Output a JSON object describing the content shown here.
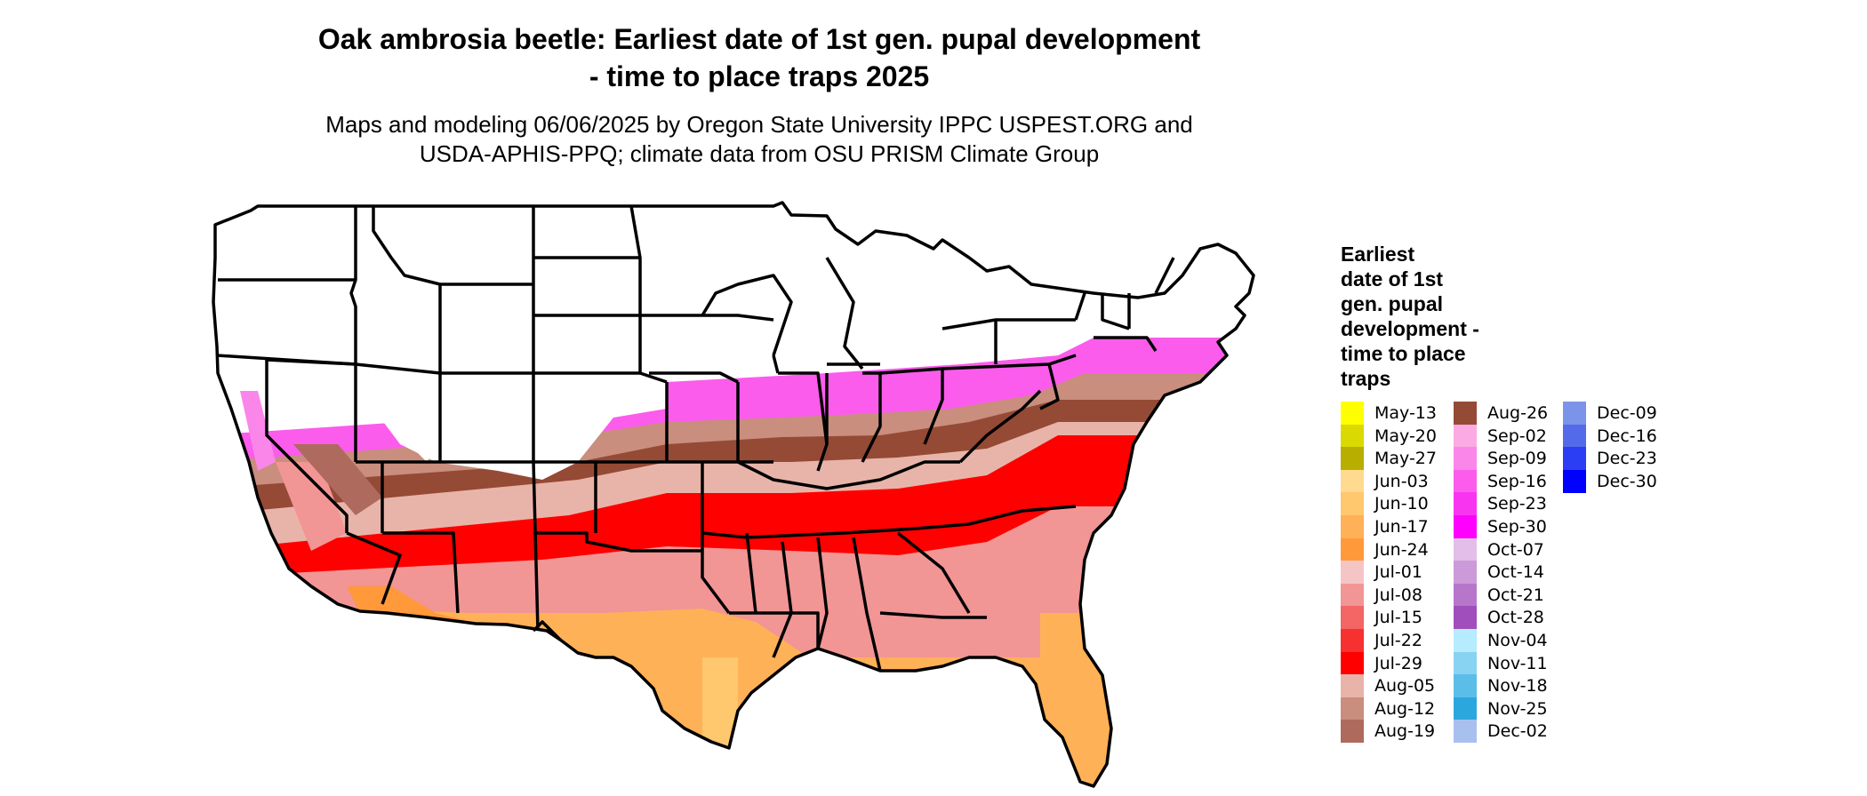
{
  "header": {
    "title_line1": "Oak ambrosia beetle: Earliest date of 1st gen. pupal development",
    "title_line2": "- time to place traps 2025",
    "subtitle_line1": "Maps and modeling 06/06/2025 by Oregon State University IPPC USPEST.ORG and",
    "subtitle_line2": "USDA-APHIS-PPQ; climate data from OSU PRISM Climate Group"
  },
  "legend": {
    "title_lines": [
      "Earliest",
      "date of 1st",
      "gen. pupal",
      "development -",
      "time to place",
      "traps"
    ],
    "columns": [
      [
        {
          "label": "May-13",
          "color": "#FFFF00"
        },
        {
          "label": "May-20",
          "color": "#DADA00"
        },
        {
          "label": "May-27",
          "color": "#B8AE00"
        },
        {
          "label": "Jun-03",
          "color": "#FFDA8F"
        },
        {
          "label": "Jun-10",
          "color": "#FFC76E"
        },
        {
          "label": "Jun-17",
          "color": "#FFB157"
        },
        {
          "label": "Jun-24",
          "color": "#FF993A"
        },
        {
          "label": "Jul-01",
          "color": "#F5C5C5"
        },
        {
          "label": "Jul-08",
          "color": "#F29595"
        },
        {
          "label": "Jul-15",
          "color": "#F46565"
        },
        {
          "label": "Jul-22",
          "color": "#F73030"
        },
        {
          "label": "Jul-29",
          "color": "#FF0000"
        },
        {
          "label": "Aug-05",
          "color": "#E8B4AA"
        },
        {
          "label": "Aug-12",
          "color": "#C98E7E"
        },
        {
          "label": "Aug-19",
          "color": "#AE6A5C"
        }
      ],
      [
        {
          "label": "Aug-26",
          "color": "#954A36"
        },
        {
          "label": "Sep-02",
          "color": "#FCAAE4"
        },
        {
          "label": "Sep-09",
          "color": "#FB86E9"
        },
        {
          "label": "Sep-16",
          "color": "#FB5CEC"
        },
        {
          "label": "Sep-23",
          "color": "#F934F1"
        },
        {
          "label": "Sep-30",
          "color": "#FF00FF"
        },
        {
          "label": "Oct-07",
          "color": "#E2BEE8"
        },
        {
          "label": "Oct-14",
          "color": "#CC9AD9"
        },
        {
          "label": "Oct-21",
          "color": "#B676CA"
        },
        {
          "label": "Oct-28",
          "color": "#A04EBC"
        },
        {
          "label": "Nov-04",
          "color": "#B5ECFF"
        },
        {
          "label": "Nov-11",
          "color": "#89D3F2"
        },
        {
          "label": "Nov-18",
          "color": "#5BBEE8"
        },
        {
          "label": "Nov-25",
          "color": "#2CA7DE"
        },
        {
          "label": "Dec-02",
          "color": "#A8C0EE"
        }
      ],
      [
        {
          "label": "Dec-09",
          "color": "#7B94E9"
        },
        {
          "label": "Dec-16",
          "color": "#536AEA"
        },
        {
          "label": "Dec-23",
          "color": "#2C3EF3"
        },
        {
          "label": "Dec-30",
          "color": "#0000FF"
        }
      ]
    ]
  }
}
